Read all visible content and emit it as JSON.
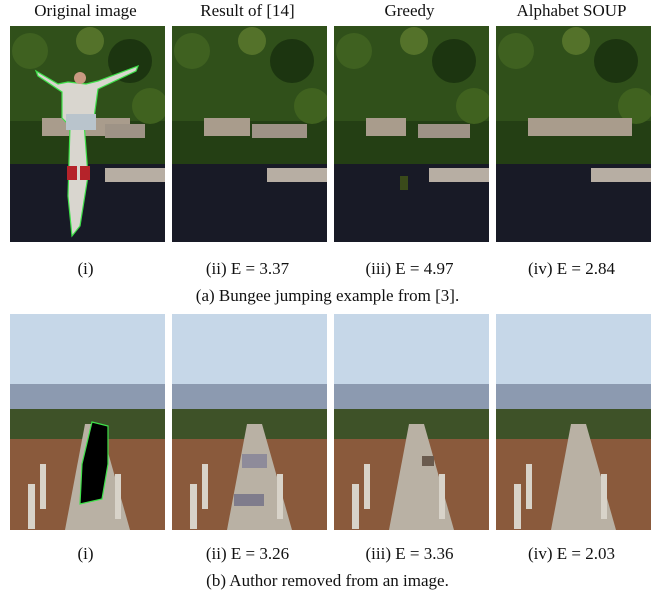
{
  "column_headers": [
    "Original image",
    "Result of [14]",
    "Greedy",
    "Alphabet SOUP"
  ],
  "rows": [
    {
      "subcaptions": [
        "(i)",
        "(ii) E = 3.37",
        "(iii) E = 4.97",
        "(iv) E = 2.84"
      ],
      "caption": "(a) Bungee jumping example from [3]."
    },
    {
      "subcaptions": [
        "(i)",
        "(ii) E = 3.26",
        "(iii) E = 3.36",
        "(iv) E = 2.03"
      ],
      "caption": "(b) Author removed from an image."
    }
  ],
  "colors": {
    "foliage_dark": "#1f3a12",
    "foliage_light": "#4f6b24",
    "water": "#1a1d2a",
    "sky": "#c6d7e8",
    "ground": "#8a5a3c",
    "mask_outline": "#3fe04a",
    "mask_fill": "#000000"
  }
}
